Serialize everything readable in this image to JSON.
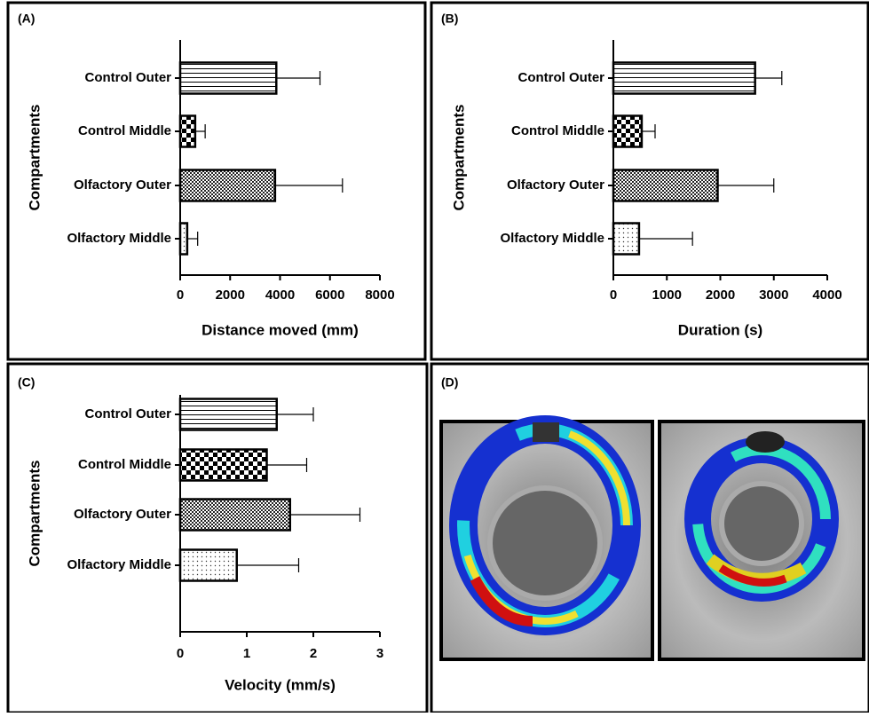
{
  "chart_data": [
    {
      "type": "bar",
      "panel": "(A)",
      "orientation": "horizontal",
      "ylabel": "Compartments",
      "xlabel": "Distance moved (mm)",
      "categories": [
        "Control Outer",
        "Control Middle",
        "Olfactory Outer",
        "Olfactory Middle"
      ],
      "values": [
        3850,
        600,
        3800,
        280
      ],
      "errors": [
        1750,
        400,
        2700,
        420
      ],
      "xlim": [
        0,
        8000
      ],
      "xticks": [
        0,
        2000,
        4000,
        6000,
        8000
      ]
    },
    {
      "type": "bar",
      "panel": "(B)",
      "orientation": "horizontal",
      "ylabel": "Compartments",
      "xlabel": "Duration (s)",
      "categories": [
        "Control Outer",
        "Control Middle",
        "Olfactory Outer",
        "Olfactory Middle"
      ],
      "values": [
        2650,
        530,
        1950,
        480
      ],
      "errors": [
        500,
        250,
        1050,
        1000
      ],
      "xlim": [
        0,
        4000
      ],
      "xticks": [
        0,
        1000,
        2000,
        3000,
        4000
      ]
    },
    {
      "type": "bar",
      "panel": "(C)",
      "orientation": "horizontal",
      "ylabel": "Compartments",
      "xlabel": "Velocity (mm/s)",
      "categories": [
        "Control Outer",
        "Control Middle",
        "Olfactory Outer",
        "Olfactory Middle"
      ],
      "values": [
        1.45,
        1.3,
        1.65,
        0.85
      ],
      "errors": [
        0.55,
        0.6,
        1.05,
        0.93
      ],
      "xlim": [
        0,
        3
      ],
      "xticks": [
        0,
        1,
        2,
        3
      ]
    },
    {
      "type": "image",
      "panel": "(D)"
    }
  ]
}
